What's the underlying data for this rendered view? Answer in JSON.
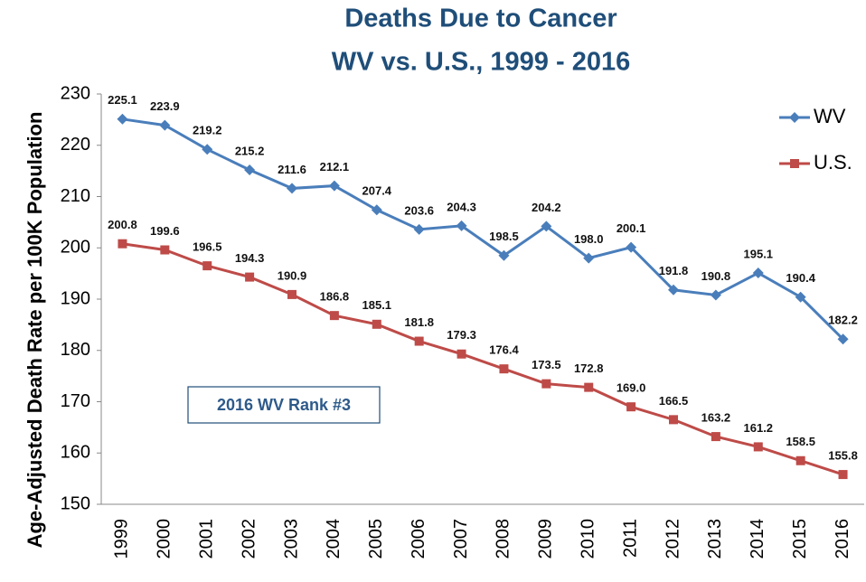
{
  "chart_data": {
    "type": "line",
    "title": "Deaths Due to Cancer",
    "subtitle": "WV vs. U.S., 1999 - 2016",
    "y_label": "Age-Adjusted Death Rate per 100K Population",
    "annotation": "2016 WV Rank #3",
    "categories": [
      "1999",
      "2000",
      "2001",
      "2002",
      "2003",
      "2004",
      "2005",
      "2006",
      "2007",
      "2008",
      "2009",
      "2010",
      "2011",
      "2012",
      "2013",
      "2014",
      "2015",
      "2016"
    ],
    "series": [
      {
        "name": "WV",
        "color": "#4a7ebb",
        "marker": "diamond",
        "values": [
          225.1,
          223.9,
          219.2,
          215.2,
          211.6,
          212.1,
          207.4,
          203.6,
          204.3,
          198.5,
          204.2,
          198,
          200.1,
          191.8,
          190.8,
          195.1,
          190.4,
          182.2
        ],
        "value_labels": [
          "225.1",
          "223.9",
          "219.2",
          "215.2",
          "211.6",
          "212.1",
          "207.4",
          "203.6",
          "204.3",
          "198.5",
          "204.2",
          "198.0",
          "200.1",
          "191.8",
          "190.8",
          "195.1",
          "190.4",
          "182.2"
        ]
      },
      {
        "name": "U.S.",
        "color": "#be4b48",
        "marker": "square",
        "values": [
          200.8,
          199.6,
          196.5,
          194.3,
          190.9,
          186.8,
          185.1,
          181.8,
          179.3,
          176.4,
          173.5,
          172.8,
          169,
          166.5,
          163.2,
          161.2,
          158.5,
          155.8
        ],
        "value_labels": [
          "200.8",
          "199.6",
          "196.5",
          "194.3",
          "190.9",
          "186.8",
          "185.1",
          "181.8",
          "179.3",
          "176.4",
          "173.5",
          "172.8",
          "169.0",
          "166.5",
          "163.2",
          "161.2",
          "158.5",
          "155.8"
        ]
      }
    ],
    "ylim": [
      150,
      230
    ],
    "yticks": [
      150,
      160,
      170,
      180,
      190,
      200,
      210,
      220,
      230
    ],
    "grid": false,
    "legend": "upper right"
  }
}
